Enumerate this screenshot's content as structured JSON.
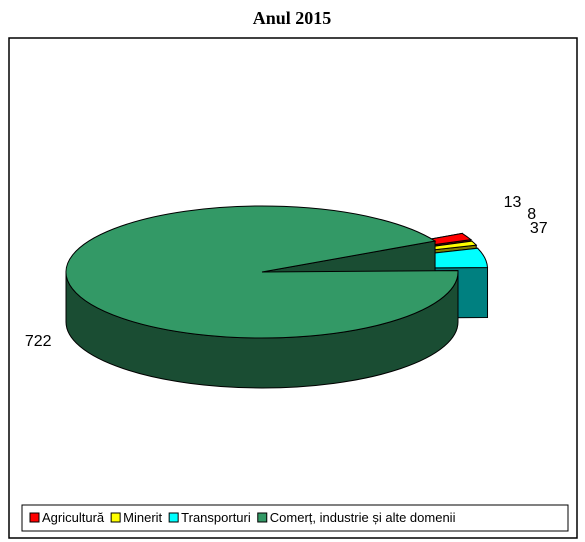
{
  "chart_data": {
    "type": "pie3d",
    "title": "Anul 2015",
    "categories": [
      "Agricultură",
      "Minerit",
      "Transporturi",
      "Comerț, industrie și alte domenii"
    ],
    "values": [
      13,
      8,
      37,
      722
    ],
    "colors": [
      "#ff0000",
      "#ffff00",
      "#00ffff",
      "#339966"
    ],
    "legend": "bottom"
  }
}
